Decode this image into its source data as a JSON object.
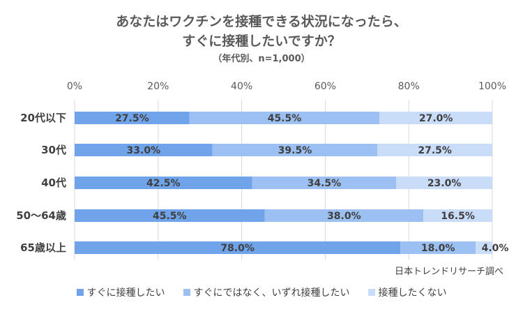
{
  "chart_data": {
    "type": "bar",
    "orientation": "horizontal",
    "stacked": true,
    "title": "あなたはワクチンを接種できる状況になったら、",
    "title_line2": "すぐに接種したいですか？",
    "subtitle": "（年代別、n=1,000）",
    "categories": [
      "20代以下",
      "30代",
      "40代",
      "50〜64歳",
      "65歳以上"
    ],
    "series": [
      {
        "name": "すぐに接種したい",
        "values": [
          27.5,
          33.0,
          42.5,
          45.5,
          78.0
        ],
        "color": "#6fa3ea"
      },
      {
        "name": "すぐにではなく、いずれ接種したい",
        "values": [
          45.5,
          39.5,
          34.5,
          38.0,
          18.0
        ],
        "color": "#9dc0f2"
      },
      {
        "name": "接種したくない",
        "values": [
          27.0,
          27.5,
          23.0,
          16.5,
          4.0
        ],
        "color": "#c9dcf8"
      }
    ],
    "xlim": [
      0,
      100
    ],
    "x_ticks": [
      "0%",
      "20%",
      "40%",
      "60%",
      "80%",
      "100%"
    ],
    "grid": true,
    "legend": "bottom",
    "source": "日本トレンドリサーチ調べ"
  }
}
